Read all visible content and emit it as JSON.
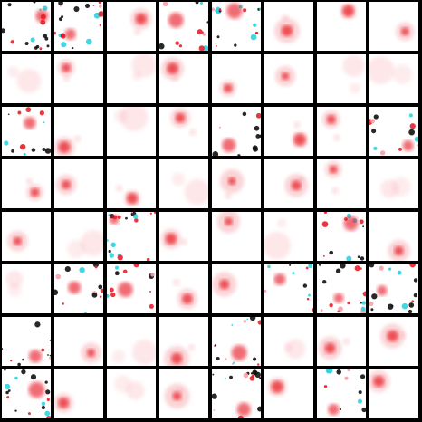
{
  "image": {
    "kind": "sample-grid",
    "rows": 8,
    "cols": 8,
    "background_color": "#000000",
    "tile_color": "#ffffff",
    "palette": {
      "red": "#e8202a",
      "pink": "#f6a0a6",
      "black": "#111111",
      "cyan": "#2fd3e0"
    }
  }
}
